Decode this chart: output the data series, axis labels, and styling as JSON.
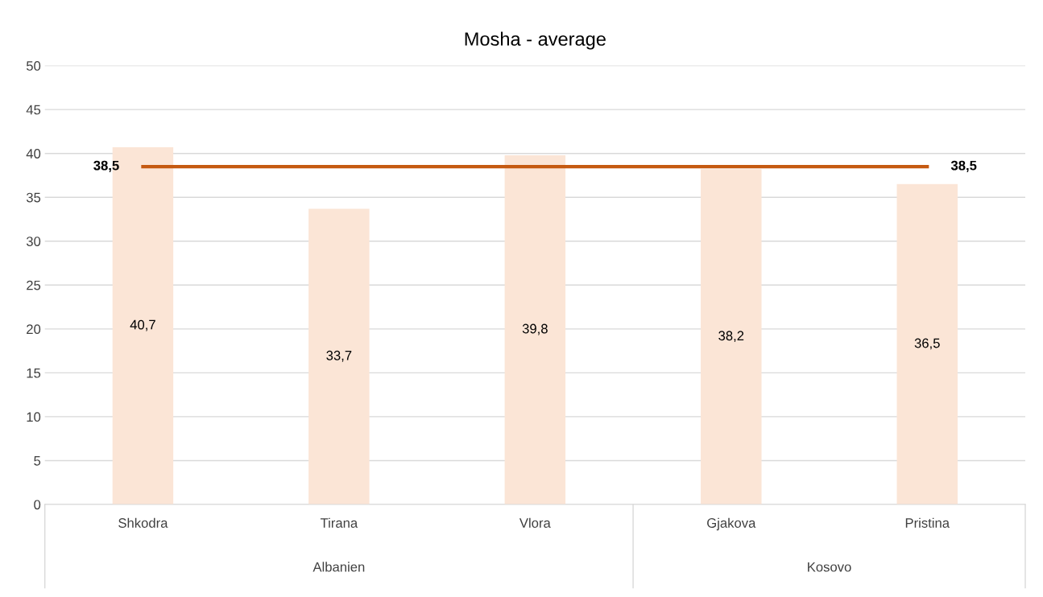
{
  "chart_data": {
    "type": "bar",
    "title": "Mosha - average",
    "categories": [
      "Shkodra",
      "Tirana",
      "Vlora",
      "Gjakova",
      "Pristina"
    ],
    "series": [
      {
        "color": "#fbe5d6",
        "values": [
          40.7,
          33.7,
          39.8,
          38.2,
          36.5
        ],
        "value_labels": [
          "40,7",
          "33,7",
          "39,8",
          "38,2",
          "36,5"
        ]
      },
      {
        "type": "line",
        "color": "#c55a11",
        "values": [
          38.5,
          38.5,
          38.5,
          38.5,
          38.5
        ],
        "value_labels": [
          "38,5",
          null,
          null,
          null,
          "38,5"
        ]
      }
    ],
    "annotations": [
      "Albanien",
      "Kosovo"
    ],
    "ylim": [
      0,
      50
    ],
    "yticks": [
      0,
      5,
      10,
      15,
      20,
      25,
      30,
      35,
      40,
      45,
      50
    ],
    "grid": "y",
    "marker": "none",
    "line_style": "solid"
  }
}
